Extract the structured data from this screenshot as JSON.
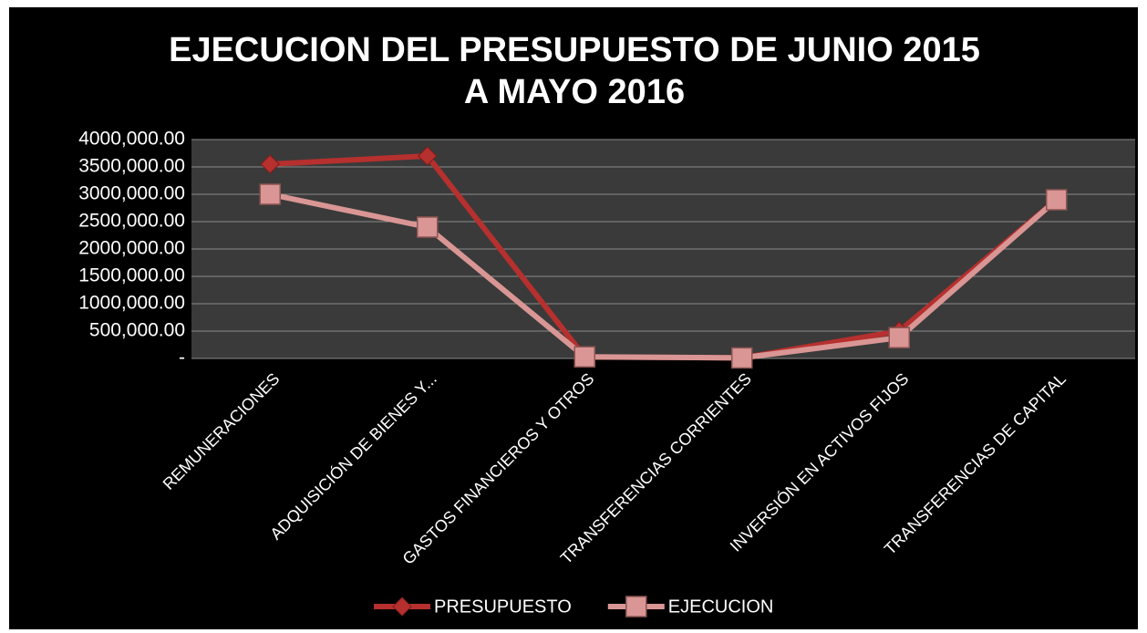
{
  "chart_data": {
    "type": "line",
    "title": [
      "EJECUCION DEL PRESUPUESTO DE JUNIO 2015",
      "A MAYO 2016"
    ],
    "categories": [
      "REMUNERACIONES",
      "ADQUISICIÓN DE BIENES Y...",
      "GASTOS FINANCIEROS Y OTROS",
      "TRANSFERENCIAS CORRIENTES",
      "INVERSIÓN EN ACTIVOS FIJOS",
      "TRANSFERENCIAS DE CAPITAL"
    ],
    "series": [
      {
        "name": "PRESUPUESTO",
        "color": "#b5302e",
        "marker": "diamond",
        "values": [
          3550000,
          3700000,
          30000,
          10000,
          500000,
          2900000
        ]
      },
      {
        "name": "EJECUCION",
        "color": "#d99694",
        "marker": "square",
        "values": [
          3000000,
          2400000,
          30000,
          10000,
          380000,
          2900000
        ]
      }
    ],
    "ylim": [
      0,
      4000000
    ],
    "yticks": [
      {
        "value": 0,
        "label": "-"
      },
      {
        "value": 500000,
        "label": "500,000.00"
      },
      {
        "value": 1000000,
        "label": "1000,000.00"
      },
      {
        "value": 1500000,
        "label": "1500,000.00"
      },
      {
        "value": 2000000,
        "label": "2000,000.00"
      },
      {
        "value": 2500000,
        "label": "2500,000.00"
      },
      {
        "value": 3000000,
        "label": "3000,000.00"
      },
      {
        "value": 3500000,
        "label": "3500,000.00"
      },
      {
        "value": 4000000,
        "label": "4000,000.00"
      }
    ],
    "grid": true,
    "legend": "bottom"
  }
}
